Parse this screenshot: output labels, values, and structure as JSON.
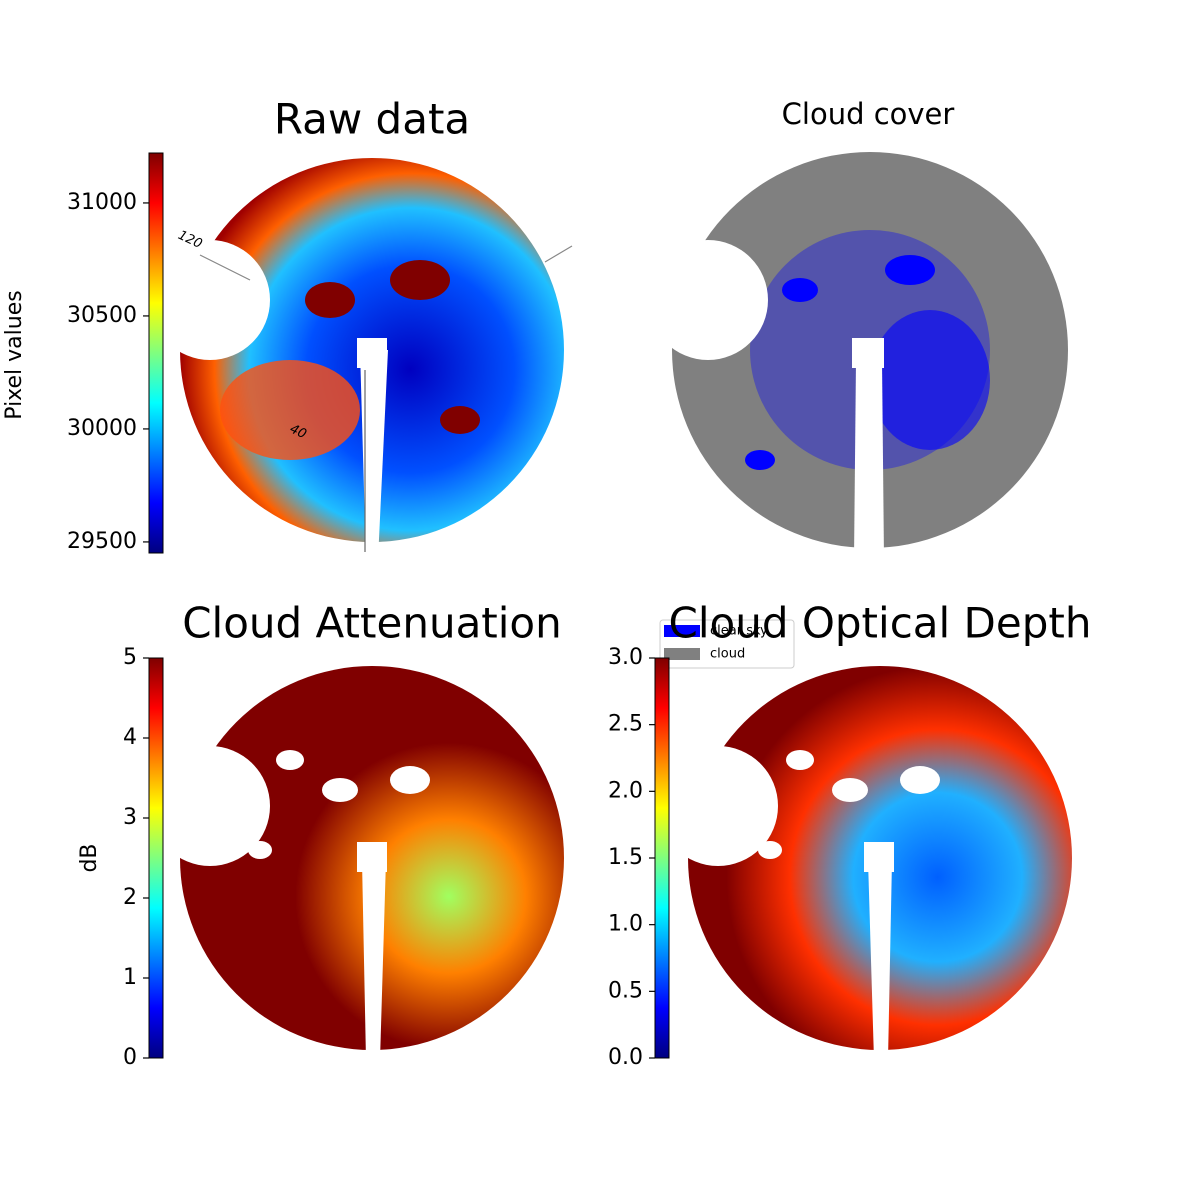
{
  "chart_data": [
    {
      "type": "image",
      "title": "Raw data",
      "colormap": "jet",
      "ylabel": "Pixel values",
      "ylim": [
        29451,
        31221
      ],
      "yticks": [
        29500,
        30000,
        30500,
        31000
      ],
      "annotations": [
        "120",
        "40"
      ]
    },
    {
      "type": "image",
      "title": "Cloud cover",
      "series": [
        {
          "name": "clear sky",
          "color": "#0000ff"
        },
        {
          "name": "cloud",
          "color": "#808080"
        }
      ]
    },
    {
      "type": "image",
      "title": "Cloud Attenuation",
      "colormap": "jet",
      "ylabel": "dB",
      "ylim": [
        0,
        5
      ],
      "yticks": [
        0,
        1,
        2,
        3,
        4,
        5
      ]
    },
    {
      "type": "image",
      "title": "Cloud Optical Depth",
      "colormap": "jet",
      "ylim": [
        0,
        3
      ],
      "yticks": [
        {
          "value": 0,
          "label": "0.0"
        },
        {
          "value": 0.5,
          "label": "0.5"
        },
        {
          "value": 1,
          "label": "1.0"
        },
        {
          "value": 1.5,
          "label": "1.5"
        },
        {
          "value": 2,
          "label": "2.0"
        },
        {
          "value": 2.5,
          "label": "2.5"
        },
        {
          "value": 3,
          "label": "3.0"
        }
      ]
    }
  ]
}
